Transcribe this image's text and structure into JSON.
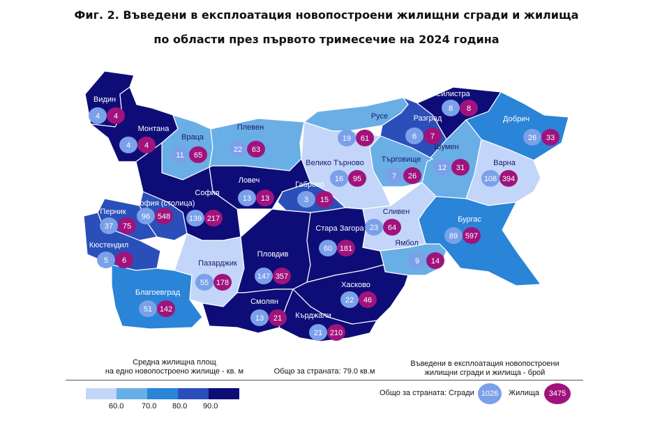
{
  "title_line1": "Фиг. 2. Въведени в експлоатация новопостроени жилищни сгради и жилища",
  "title_line2": "по области през първото тримесечие на 2024 година",
  "colors": {
    "level1": "#c3d5f8",
    "level2": "#6aaee6",
    "level3": "#2a84d8",
    "level4": "#2a4fb8",
    "level5": "#0e0d78",
    "border": "#ffffff",
    "buildings_circle": "#7aa0ea",
    "dwellings_circle": "#a0137c"
  },
  "regions": [
    {
      "name": "Видин",
      "buildings": "4",
      "dwellings": "4",
      "level": 5
    },
    {
      "name": "Монтана",
      "buildings": "4",
      "dwellings": "4",
      "level": 5
    },
    {
      "name": "Враца",
      "buildings": "11",
      "dwellings": "65",
      "level": 2
    },
    {
      "name": "Плевен",
      "buildings": "22",
      "dwellings": "63",
      "level": 2
    },
    {
      "name": "Русе",
      "buildings": "19",
      "dwellings": "61",
      "level": 2
    },
    {
      "name": "Разград",
      "buildings": "6",
      "dwellings": "7",
      "level": 4
    },
    {
      "name": "Силистра",
      "buildings": "8",
      "dwellings": "8",
      "level": 5
    },
    {
      "name": "Добрич",
      "buildings": "26",
      "dwellings": "33",
      "level": 3
    },
    {
      "name": "Варна",
      "buildings": "108",
      "dwellings": "394",
      "level": 1
    },
    {
      "name": "Шумен",
      "buildings": "12",
      "dwellings": "31",
      "level": 2
    },
    {
      "name": "Търговище",
      "buildings": "7",
      "dwellings": "26",
      "level": 2
    },
    {
      "name": "Велико Търново",
      "buildings": "16",
      "dwellings": "95",
      "level": 1
    },
    {
      "name": "Ловеч",
      "buildings": "13",
      "dwellings": "13",
      "level": 5
    },
    {
      "name": "Габрово",
      "buildings": "3",
      "dwellings": "15",
      "level": 4
    },
    {
      "name": "София",
      "buildings": "139",
      "dwellings": "217",
      "level": 5
    },
    {
      "name": "София (столица)",
      "buildings": "96",
      "dwellings": "548",
      "level": 4
    },
    {
      "name": "Перник",
      "buildings": "37",
      "dwellings": "75",
      "level": 4
    },
    {
      "name": "Кюстендил",
      "buildings": "5",
      "dwellings": "6",
      "level": 4
    },
    {
      "name": "Благоевград",
      "buildings": "51",
      "dwellings": "142",
      "level": 3
    },
    {
      "name": "Пазарджик",
      "buildings": "55",
      "dwellings": "178",
      "level": 1
    },
    {
      "name": "Пловдив",
      "buildings": "147",
      "dwellings": "357",
      "level": 5
    },
    {
      "name": "Стара Загора",
      "buildings": "60",
      "dwellings": "181",
      "level": 5
    },
    {
      "name": "Сливен",
      "buildings": "23",
      "dwellings": "64",
      "level": 1
    },
    {
      "name": "Ямбол",
      "buildings": "9",
      "dwellings": "14",
      "level": 2
    },
    {
      "name": "Бургас",
      "buildings": "89",
      "dwellings": "597",
      "level": 3
    },
    {
      "name": "Хасково",
      "buildings": "22",
      "dwellings": "46",
      "level": 5
    },
    {
      "name": "Смолян",
      "buildings": "13",
      "dwellings": "21",
      "level": 5
    },
    {
      "name": "Кърджали",
      "buildings": "21",
      "dwellings": "210",
      "level": 5
    }
  ],
  "legend": {
    "area_title_line1": "Средна жилищна площ",
    "area_title_line2": "на едно новопостроено жилище - кв. м",
    "country_area": "Общо за страната: 79.0 кв.м",
    "built_title_line1": "Въведени в експлоатация новопостроени",
    "built_title_line2": "жилищни сгради и жилища - брой",
    "scale_ticks": [
      "60.0",
      "70.0",
      "80.0",
      "90.0"
    ],
    "country_total_label": "Общо за страната:",
    "buildings_label": "Сгради",
    "buildings_total": "1026",
    "dwellings_label": "Жилища",
    "dwellings_total": "3475"
  }
}
